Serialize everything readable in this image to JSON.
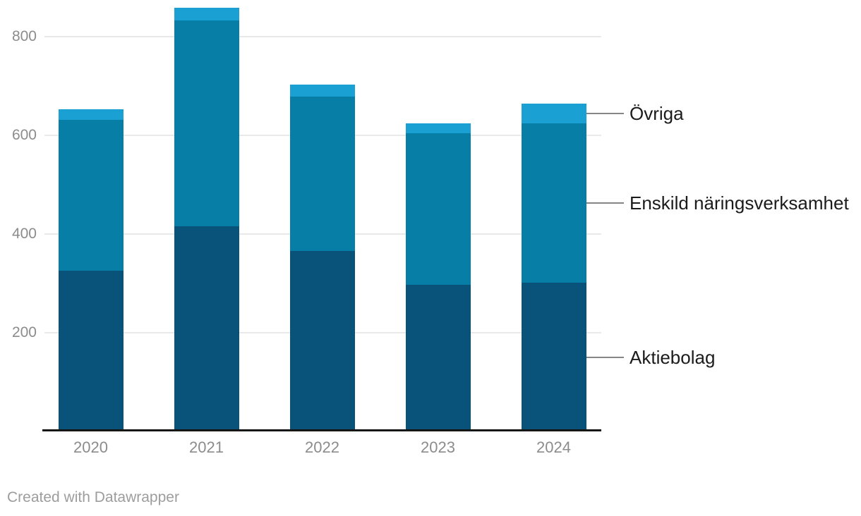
{
  "chart_data": {
    "type": "bar",
    "stacked": true,
    "title": "",
    "xlabel": "",
    "ylabel": "",
    "categories": [
      "2020",
      "2021",
      "2022",
      "2023",
      "2024"
    ],
    "series": [
      {
        "name": "Aktiebolag",
        "color": "#09527a",
        "values": [
          326,
          416,
          366,
          297,
          301
        ]
      },
      {
        "name": "Enskild näringsverksamhet",
        "color": "#077ea6",
        "values": [
          305,
          417,
          313,
          307,
          324
        ]
      },
      {
        "name": "Övriga",
        "color": "#1aa0d2",
        "values": [
          22,
          26,
          24,
          21,
          40
        ]
      }
    ],
    "totals": [
      653,
      859,
      703,
      625,
      665
    ],
    "yticks": [
      200,
      400,
      600,
      800
    ],
    "ylim": [
      0,
      875
    ],
    "grid": true,
    "legend_position": "right"
  },
  "legend": {
    "items": [
      {
        "label": "Övriga"
      },
      {
        "label": "Enskild näringsverksamhet"
      },
      {
        "label": "Aktiebolag"
      }
    ]
  },
  "footer": {
    "credit": "Created with Datawrapper"
  }
}
